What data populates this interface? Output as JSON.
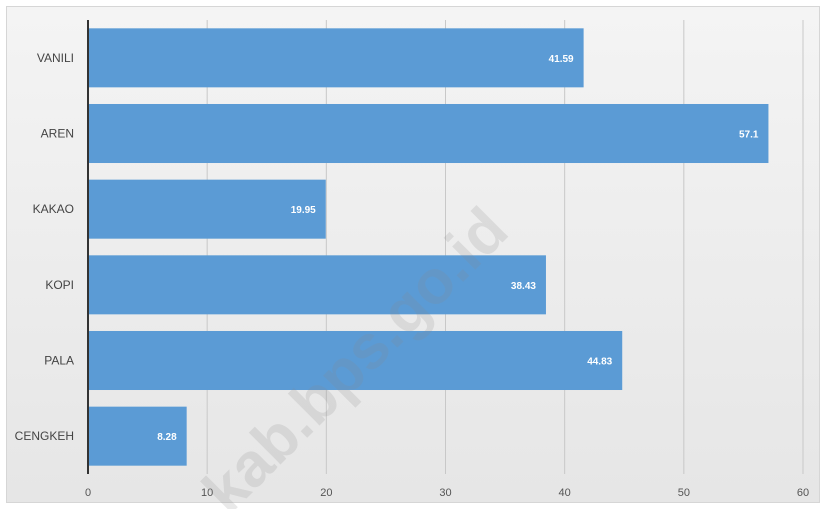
{
  "chart_data": {
    "type": "bar",
    "orientation": "horizontal",
    "categories": [
      "VANILI",
      "AREN",
      "KAKAO",
      "KOPI",
      "PALA",
      "CENGKEH"
    ],
    "values": [
      41.59,
      57.1,
      19.95,
      38.43,
      44.83,
      8.28
    ],
    "data_labels": [
      "41.59",
      "57.1",
      "19.95",
      "38.43",
      "44.83",
      "8.28"
    ],
    "x_ticks": [
      "0",
      "10",
      "20",
      "30",
      "40",
      "50",
      "60"
    ],
    "xlim": [
      0,
      60
    ],
    "grid": "vertical",
    "legend": "none",
    "bar_color": "#5b9bd5",
    "title": "",
    "xlabel": "",
    "ylabel": ""
  },
  "watermark": "kab.bps.go.id"
}
